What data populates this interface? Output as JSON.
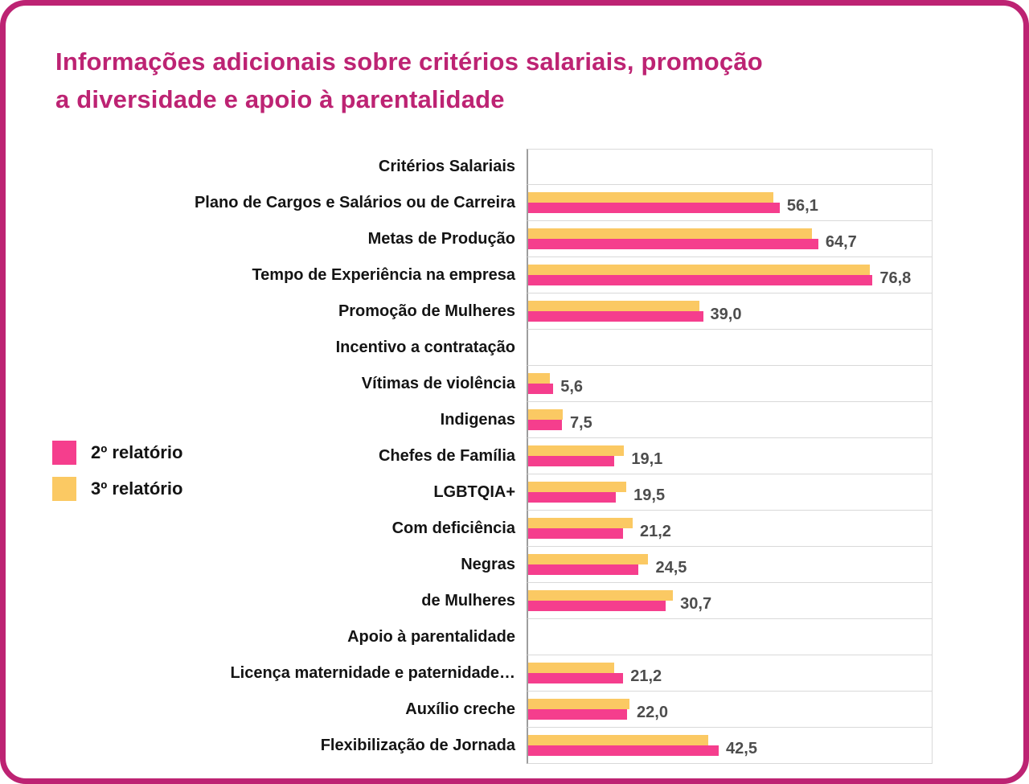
{
  "frame": {
    "border_color": "#bd2373"
  },
  "title_lines": [
    "Informações adicionais sobre critérios salariais, promoção",
    "a diversidade e apoio à parentalidade"
  ],
  "title_color": "#bd2373",
  "legend": {
    "items": [
      {
        "label": "2º relatório",
        "color": "#f53e8d"
      },
      {
        "label": "3º relatório",
        "color": "#fbc963"
      }
    ]
  },
  "chart_data": {
    "type": "bar",
    "orientation": "horizontal",
    "title": "Informações adicionais sobre critérios salariais, promoção a diversidade e apoio à parentalidade",
    "xlabel": "",
    "ylabel": "",
    "xlim": [
      0,
      90
    ],
    "grid": "horizontal row separator lines only",
    "legend_position": "left",
    "categories": [
      "Critérios Salariais",
      "Plano de Cargos e Salários ou de Carreira",
      "Metas de Produção",
      "Tempo de Experiência na empresa",
      "Promoção de Mulheres",
      "Incentivo a contratação",
      "Vítimas de violência",
      "Indigenas",
      "Chefes de Família",
      "LGBTQIA+",
      "Com deficiência",
      "Negras",
      "de Mulheres",
      "Apoio à parentalidade",
      "Licença maternidade e paternidade…",
      "Auxílio creche",
      "Flexibilização de Jornada"
    ],
    "section_header_rows": [
      0,
      5,
      13
    ],
    "series": [
      {
        "name": "2º relatório",
        "color": "#f53e8d",
        "values": [
          null,
          56.1,
          64.7,
          76.8,
          39.0,
          null,
          5.6,
          7.5,
          19.1,
          19.5,
          21.2,
          24.5,
          30.7,
          null,
          21.2,
          22.0,
          42.5
        ]
      },
      {
        "name": "3º relatório",
        "color": "#fbc963",
        "values": [
          null,
          54.6,
          63.3,
          76.2,
          38.2,
          null,
          4.9,
          7.7,
          21.4,
          21.9,
          23.3,
          26.8,
          32.3,
          null,
          19.2,
          22.6,
          40.2
        ]
      }
    ],
    "value_labels": [
      "",
      "56,1",
      "64,7",
      "76,8",
      "39,0",
      "",
      "5,6",
      "7,5",
      "19,1",
      "19,5",
      "21,2",
      "24,5",
      "30,7",
      "",
      "21,2",
      "22,0",
      "42,5"
    ]
  }
}
